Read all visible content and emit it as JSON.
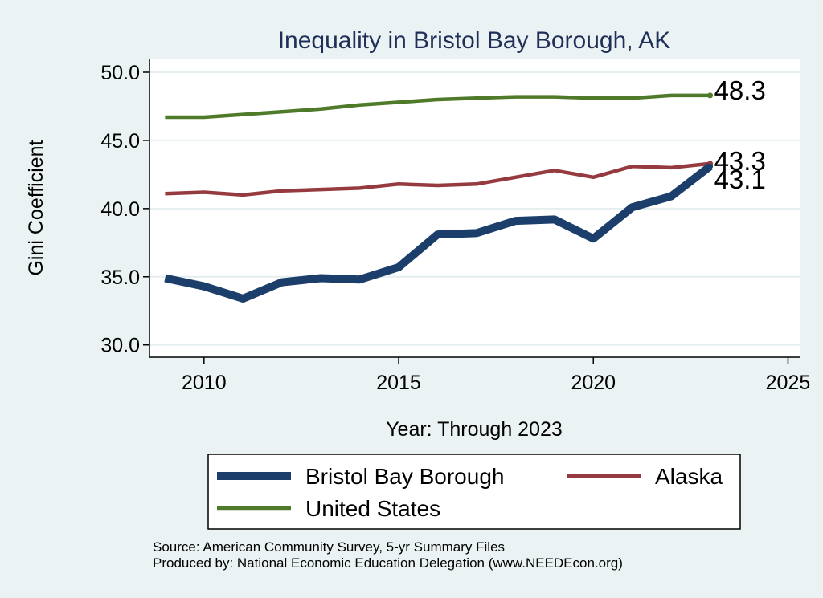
{
  "chart_data": {
    "type": "line",
    "title": "Inequality in Bristol Bay Borough, AK",
    "xlabel": "Year: Through 2023",
    "ylabel": "Gini Coefficient",
    "xlim": [
      2008.6,
      2025.3
    ],
    "ylim": [
      29.1,
      51.0
    ],
    "x_ticks": [
      2010,
      2015,
      2020,
      2025
    ],
    "y_ticks": [
      "30.0",
      "35.0",
      "40.0",
      "45.0",
      "50.0"
    ],
    "grid": true,
    "legend_position": "bottom",
    "x": [
      2009,
      2010,
      2011,
      2012,
      2013,
      2014,
      2015,
      2016,
      2017,
      2018,
      2019,
      2020,
      2021,
      2022,
      2023
    ],
    "series": [
      {
        "name": "Bristol Bay Borough",
        "color": "#1b3f6a",
        "line_weight": "thick",
        "values": [
          34.9,
          34.3,
          33.4,
          34.6,
          34.9,
          34.8,
          35.7,
          38.1,
          38.2,
          39.1,
          39.2,
          37.8,
          40.1,
          40.9,
          43.1
        ],
        "end_label": "43.1"
      },
      {
        "name": "Alaska",
        "color": "#953a3f",
        "line_weight": "medium",
        "values": [
          41.1,
          41.2,
          41.0,
          41.3,
          41.4,
          41.5,
          41.8,
          41.7,
          41.8,
          42.3,
          42.8,
          42.3,
          43.1,
          43.0,
          43.3
        ],
        "end_label": "43.3"
      },
      {
        "name": "United States",
        "color": "#4e7a2a",
        "line_weight": "medium",
        "values": [
          46.7,
          46.7,
          46.9,
          47.1,
          47.3,
          47.6,
          47.8,
          48.0,
          48.1,
          48.2,
          48.2,
          48.1,
          48.1,
          48.3,
          48.3
        ],
        "end_label": "48.3"
      }
    ],
    "source_lines": [
      "Source: American Community Survey, 5-yr Summary Files",
      "Produced by: National Economic Education Delegation (www.NEEDEcon.org)"
    ]
  }
}
